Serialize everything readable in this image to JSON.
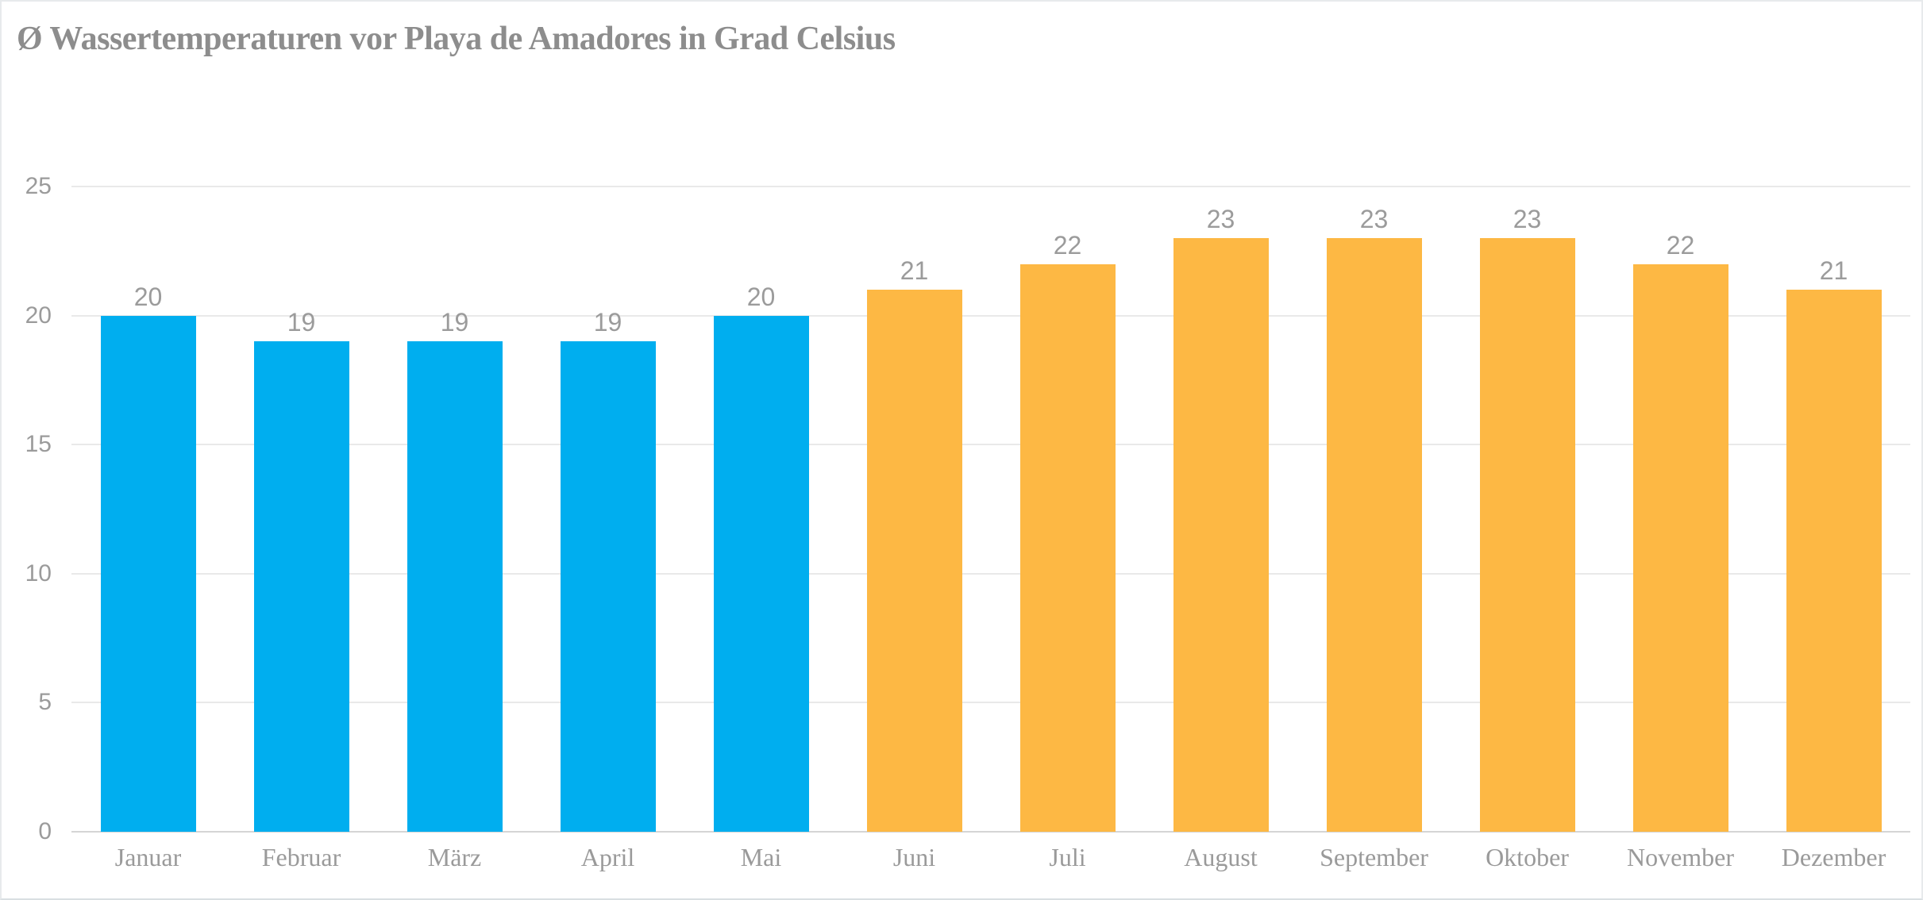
{
  "title": "Ø Wassertemperaturen vor Playa de Amadores in Grad Celsius",
  "chart_data": {
    "type": "bar",
    "title": "Ø Wassertemperaturen vor Playa de Amadores in Grad Celsius",
    "categories": [
      "Januar",
      "Februar",
      "März",
      "April",
      "Mai",
      "Juni",
      "Juli",
      "August",
      "September",
      "Oktober",
      "November",
      "Dezember"
    ],
    "values": [
      20,
      19,
      19,
      19,
      20,
      21,
      22,
      23,
      23,
      23,
      22,
      21
    ],
    "data_labels": [
      "20",
      "19",
      "19",
      "19",
      "20",
      "21",
      "22",
      "23",
      "23",
      "23",
      "22",
      "21"
    ],
    "bar_colors": [
      "#00aeef",
      "#00aeef",
      "#00aeef",
      "#00aeef",
      "#00aeef",
      "#fdb844",
      "#fdb844",
      "#fdb844",
      "#fdb844",
      "#fdb844",
      "#fdb844",
      "#fdb844"
    ],
    "xlabel": "",
    "ylabel": "",
    "ylim": [
      0,
      25
    ],
    "yticks": [
      0,
      5,
      10,
      15,
      20,
      25
    ],
    "ytick_labels": [
      "0",
      "5",
      "10",
      "15",
      "20",
      "25"
    ],
    "grid": true,
    "legend_position": "none",
    "colors": {
      "blue_bars_jan_mai": "#00aeef",
      "orange_bars_jun_dez": "#fdb844",
      "gridline": "#e9e9e9",
      "axis_line": "#d5d5d5",
      "tick_label_text": "#9b9b9b",
      "value_label_text": "#9b9b9b",
      "month_label_text": "#9a9a9a",
      "title_text": "#8d8d8d"
    }
  }
}
